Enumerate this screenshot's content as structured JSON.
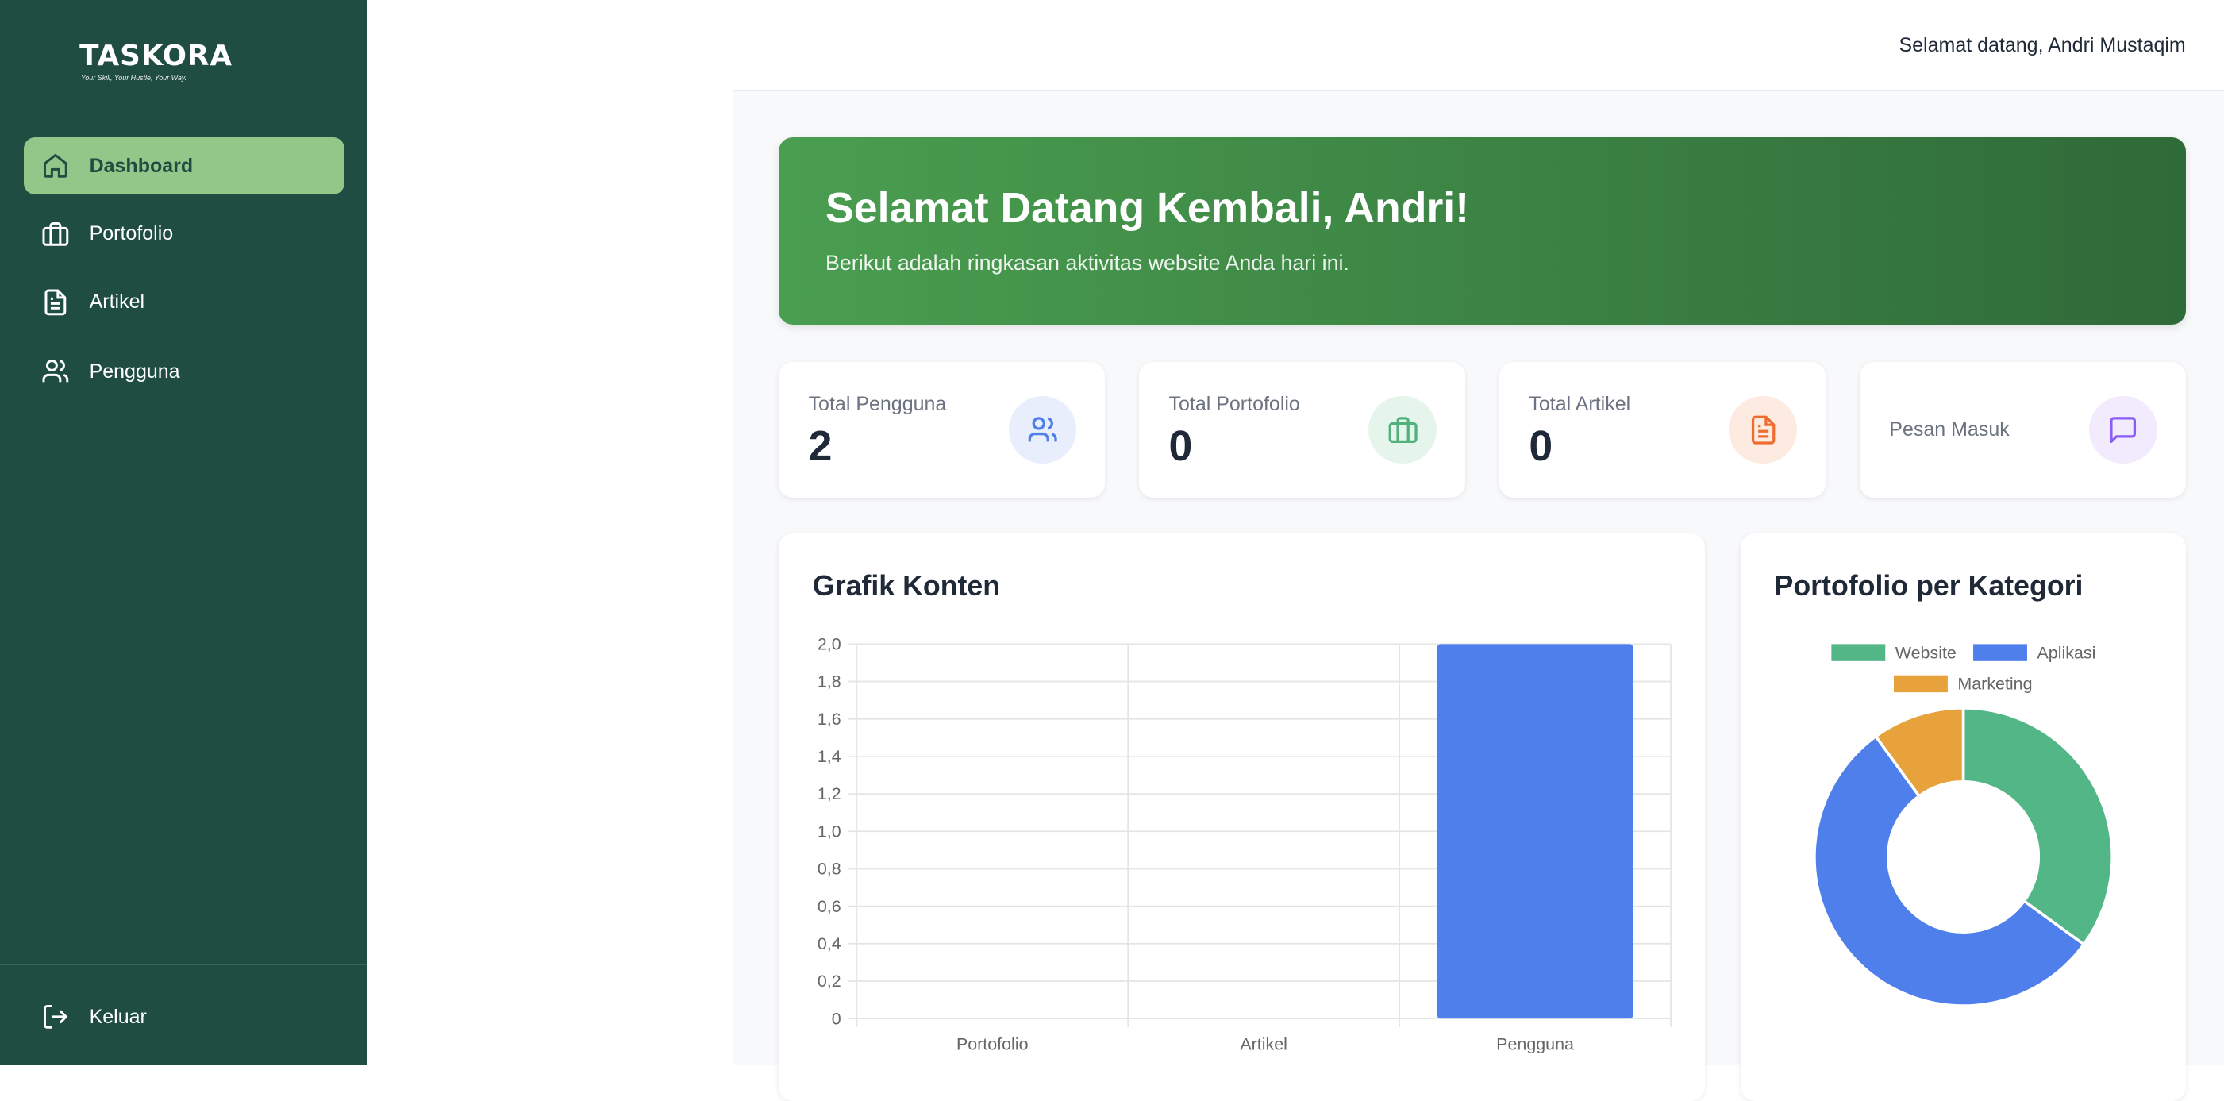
{
  "brand": {
    "name": "TASKORA",
    "tagline": "Your Skill, Your Hustle, Your Way."
  },
  "sidebar": {
    "items": [
      {
        "label": "Dashboard",
        "icon": "home-icon",
        "active": true
      },
      {
        "label": "Portofolio",
        "icon": "briefcase-icon"
      },
      {
        "label": "Artikel",
        "icon": "document-icon"
      },
      {
        "label": "Pengguna",
        "icon": "users-icon"
      }
    ],
    "logout": "Keluar"
  },
  "header": {
    "welcome": "Selamat datang, Andri Mustaqim"
  },
  "banner": {
    "title": "Selamat Datang Kembali, Andri!",
    "subtitle": "Berikut adalah ringkasan aktivitas website Anda hari ini."
  },
  "stats": [
    {
      "label": "Total Pengguna",
      "value": "2",
      "icon": "users-icon",
      "color": "#4f7fea"
    },
    {
      "label": "Total Portofolio",
      "value": "0",
      "icon": "briefcase-icon",
      "color": "#4fb27a"
    },
    {
      "label": "Total Artikel",
      "value": "0",
      "icon": "document-icon",
      "color": "#ef6c2f"
    },
    {
      "label": "Pesan Masuk",
      "icon": "message-icon",
      "color": "#8b5cf6"
    }
  ],
  "chart_data": [
    {
      "type": "bar",
      "title": "Grafik Konten",
      "categories": [
        "Portofolio",
        "Artikel",
        "Pengguna"
      ],
      "values": [
        0,
        0,
        2
      ],
      "ylim": [
        0,
        2
      ],
      "yticks": [
        "0",
        "0,2",
        "0,4",
        "0,6",
        "0,8",
        "1,0",
        "1,2",
        "1,4",
        "1,6",
        "1,8",
        "2,0"
      ],
      "grid": true,
      "color": "#4f7fea"
    },
    {
      "type": "pie",
      "title": "Portofolio per Kategori",
      "donut": true,
      "legend": "top",
      "categories": [
        "Website",
        "Aplikasi",
        "Marketing"
      ],
      "values": [
        35,
        55,
        10
      ],
      "colors": [
        "#53b686",
        "#4f7fea",
        "#e8a23c"
      ]
    }
  ]
}
